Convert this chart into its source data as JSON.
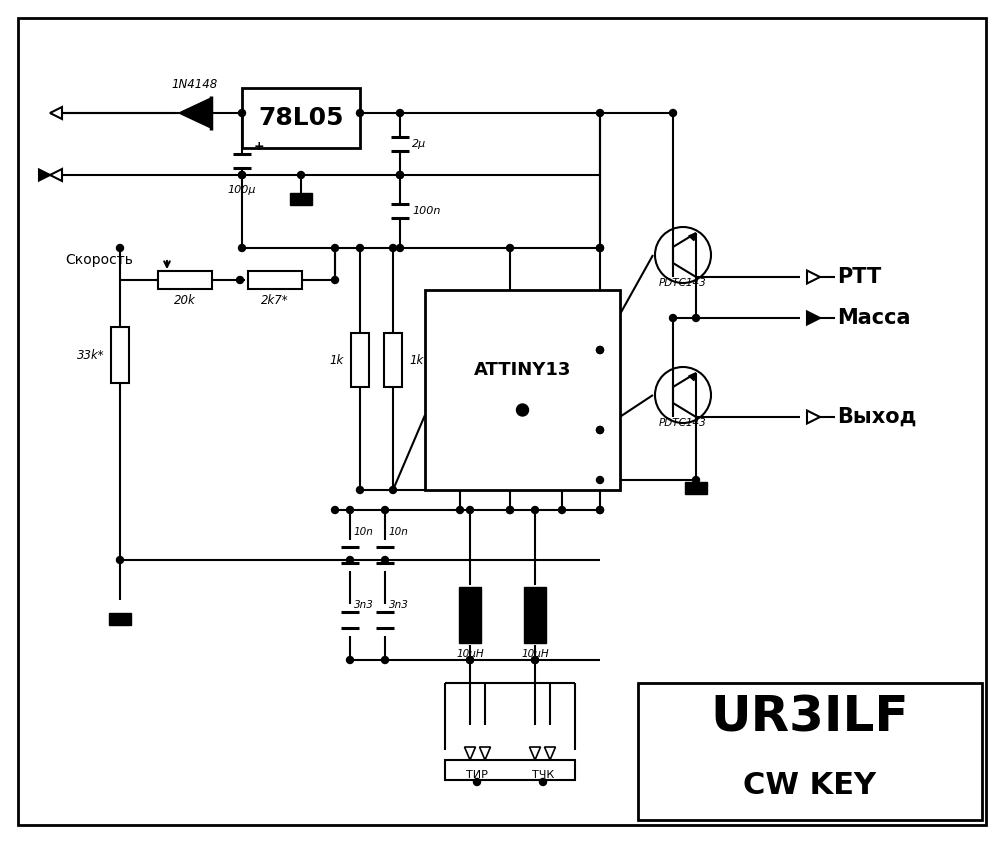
{
  "bg": "#ffffff",
  "lc": "#000000",
  "lw": 1.5,
  "fig_w": 10.04,
  "fig_h": 8.43,
  "dpi": 100,
  "labels": {
    "diode": "1N4148",
    "reg": "78L05",
    "c1": "100μ",
    "c2": "2μ",
    "c3": "100n",
    "r20k": "20k",
    "r2k7": "2k7*",
    "r33k": "33k*",
    "r1k_a": "1k",
    "r1k_b": "1k",
    "c10n_a": "10n",
    "c10n_b": "10n",
    "c3n3_a": "3n3",
    "c3n3_b": "3n3",
    "l1": "10μH",
    "l2": "10μH",
    "tr1": "PDTC143",
    "tr2": "PDTC143",
    "speed": "Скорость",
    "ptt": "PTT",
    "massa": "Масса",
    "vyhod": "Выход",
    "tir": "ТИР",
    "tchk": "ТЧК",
    "mcu": "ATTINY13",
    "ur3ilf": "UR3ILF",
    "cwkey": "CW KEY"
  }
}
